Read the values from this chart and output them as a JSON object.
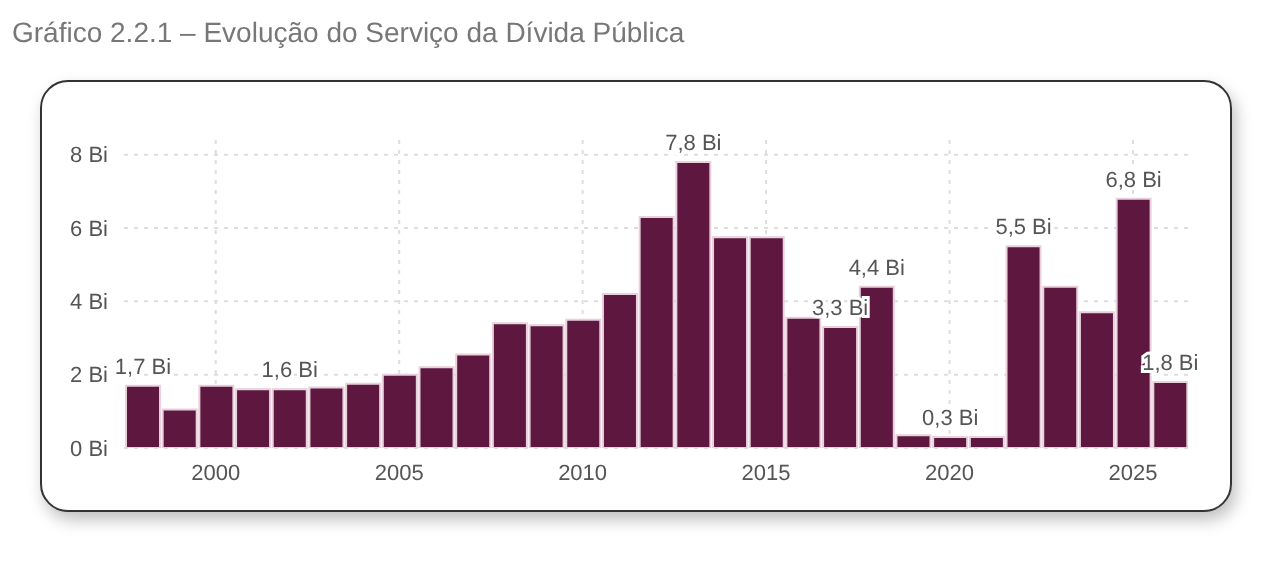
{
  "chart_data": {
    "type": "bar",
    "title": "Gráfico 2.2.1 – Evolução do Serviço da Dívida Pública",
    "x": [
      1998,
      1999,
      2000,
      2001,
      2002,
      2003,
      2004,
      2005,
      2006,
      2007,
      2008,
      2009,
      2010,
      2011,
      2012,
      2013,
      2014,
      2015,
      2016,
      2017,
      2018,
      2019,
      2020,
      2021,
      2022,
      2023,
      2024,
      2025,
      2026
    ],
    "values": [
      1.7,
      1.05,
      1.7,
      1.6,
      1.6,
      1.65,
      1.75,
      2.0,
      2.2,
      2.55,
      3.4,
      3.35,
      3.5,
      4.2,
      6.3,
      7.8,
      5.75,
      5.75,
      3.55,
      3.3,
      4.4,
      0.35,
      0.3,
      0.3,
      5.5,
      4.4,
      3.7,
      6.8,
      1.8
    ],
    "value_labels": [
      "1,7 Bi",
      null,
      null,
      null,
      "1,6 Bi",
      null,
      null,
      null,
      null,
      null,
      null,
      null,
      null,
      null,
      null,
      "7,8 Bi",
      null,
      null,
      null,
      "3,3 Bi",
      "4,4 Bi",
      null,
      "0,3 Bi",
      null,
      "5,5 Bi",
      null,
      null,
      "6,8 Bi",
      "1,8 Bi"
    ],
    "color": "#5e1840",
    "xlim": [
      1997.5,
      2026.5
    ],
    "xticks": [
      2000,
      2005,
      2010,
      2015,
      2020,
      2025
    ],
    "ylim": [
      0,
      8.4
    ],
    "yticks": [
      {
        "value": 0,
        "label": "0 Bi"
      },
      {
        "value": 2,
        "label": "2 Bi"
      },
      {
        "value": 4,
        "label": "4 Bi"
      },
      {
        "value": 6,
        "label": "6 Bi"
      },
      {
        "value": 8,
        "label": "8 Bi"
      }
    ],
    "grid": true
  }
}
